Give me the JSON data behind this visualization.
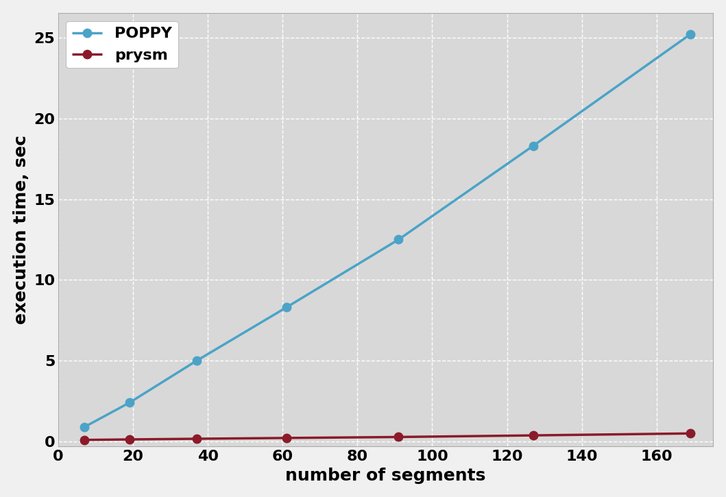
{
  "poppy_x": [
    7,
    19,
    37,
    61,
    91,
    127,
    169
  ],
  "poppy_y": [
    0.9,
    2.4,
    5.0,
    8.3,
    12.5,
    18.3,
    25.2
  ],
  "prysm_x": [
    7,
    19,
    37,
    61,
    91,
    127,
    169
  ],
  "prysm_y": [
    0.1,
    0.13,
    0.17,
    0.22,
    0.28,
    0.38,
    0.5
  ],
  "poppy_color": "#4BA3C7",
  "prysm_color": "#8B1A2A",
  "poppy_label": "POPPY",
  "prysm_label": "prysm",
  "xlabel": "number of segments",
  "ylabel": "execution time, sec",
  "xlim": [
    0,
    175
  ],
  "ylim": [
    -0.3,
    26.5
  ],
  "xticks": [
    0,
    20,
    40,
    60,
    80,
    100,
    120,
    140,
    160
  ],
  "yticks": [
    0,
    5,
    10,
    15,
    20,
    25
  ],
  "background_color": "#D8D8D8",
  "grid_color": "#FFFFFF",
  "linewidth": 2.5,
  "markersize": 9,
  "label_fontsize": 18,
  "tick_fontsize": 16,
  "legend_fontsize": 16
}
